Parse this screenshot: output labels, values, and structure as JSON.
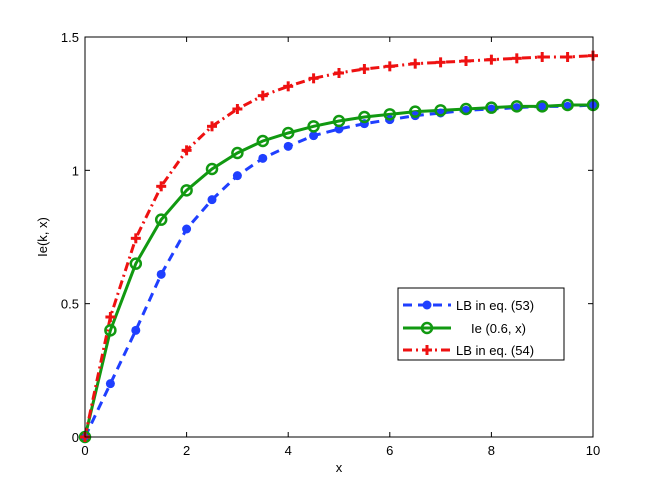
{
  "chart_data": {
    "type": "line",
    "xlabel": "x",
    "ylabel": "Ie(k, x)",
    "xlim": [
      0,
      10
    ],
    "ylim": [
      0,
      1.5
    ],
    "xticks": [
      "0",
      "2",
      "4",
      "6",
      "8",
      "10"
    ],
    "yticks": [
      "0",
      "0.5",
      "1",
      "1.5"
    ],
    "legend_position": "lower-right",
    "x": [
      0,
      0.5,
      1,
      1.5,
      2,
      2.5,
      3,
      3.5,
      4,
      4.5,
      5,
      5.5,
      6,
      6.5,
      7,
      7.5,
      8,
      8.5,
      9,
      9.5,
      10
    ],
    "series": [
      {
        "name": "LB in eq. (53)",
        "color": "#1f3fff",
        "line_style": "dashed",
        "marker": "filled-circle",
        "values": [
          0,
          0.2,
          0.4,
          0.61,
          0.78,
          0.89,
          0.98,
          1.045,
          1.09,
          1.13,
          1.155,
          1.175,
          1.19,
          1.205,
          1.215,
          1.225,
          1.23,
          1.235,
          1.24,
          1.24,
          1.245
        ]
      },
      {
        "name": "Ie (0.6, x)",
        "color": "#119911",
        "line_style": "solid",
        "marker": "open-circle",
        "values": [
          0,
          0.4,
          0.65,
          0.815,
          0.925,
          1.005,
          1.065,
          1.11,
          1.14,
          1.165,
          1.185,
          1.2,
          1.21,
          1.22,
          1.225,
          1.23,
          1.235,
          1.24,
          1.24,
          1.245,
          1.245
        ]
      },
      {
        "name": "LB in eq. (54)",
        "color": "#ee1111",
        "line_style": "dash-dot",
        "marker": "plus",
        "values": [
          0,
          0.45,
          0.745,
          0.94,
          1.075,
          1.165,
          1.23,
          1.28,
          1.315,
          1.345,
          1.365,
          1.38,
          1.39,
          1.4,
          1.405,
          1.41,
          1.415,
          1.42,
          1.425,
          1.425,
          1.43
        ]
      }
    ]
  }
}
